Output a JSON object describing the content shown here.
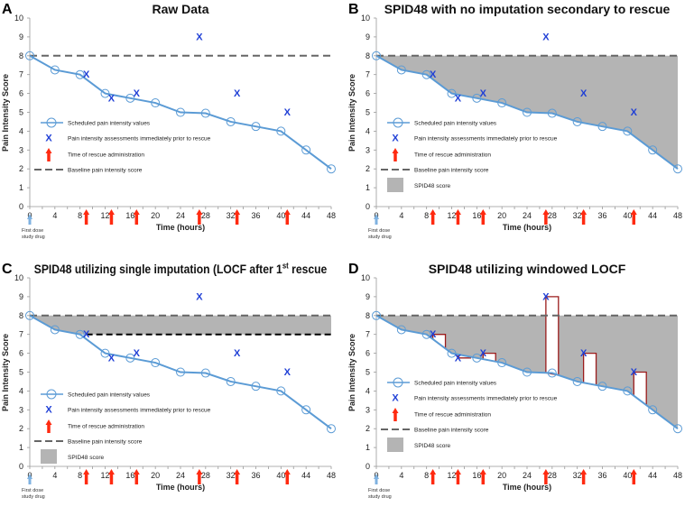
{
  "chart_data": {
    "type": "line",
    "xlabel": "Time (hours)",
    "ylabel": "Pain Intensity Score",
    "xlim": [
      0,
      48
    ],
    "ylim": [
      0,
      10
    ],
    "x_ticks": [
      "0",
      "4",
      "8",
      "12",
      "16",
      "20",
      "24",
      "28",
      "32",
      "36",
      "40",
      "44",
      "48"
    ],
    "y_ticks": [
      "0",
      "1",
      "2",
      "3",
      "4",
      "5",
      "6",
      "7",
      "8",
      "9",
      "10"
    ],
    "baseline": 8,
    "scheduled": {
      "x": [
        0,
        4,
        8,
        12,
        16,
        20,
        24,
        28,
        32,
        36,
        40,
        44,
        48
      ],
      "y": [
        8,
        7.25,
        7,
        6,
        5.75,
        5.5,
        5,
        4.95,
        4.5,
        4.25,
        4,
        3,
        2
      ]
    },
    "rescue": {
      "x": [
        9,
        13,
        17,
        27,
        33,
        41
      ],
      "y": [
        7,
        5.75,
        6,
        9,
        6,
        5
      ]
    },
    "locf_window_hours": 2,
    "first_dose_label": [
      "First dose",
      "study drug"
    ],
    "legend": {
      "scheduled": "Scheduled pain intensity values",
      "rescue_assessment": "Pain intensity assessments immediately prior to rescue",
      "rescue_time": "Time of rescue administration",
      "baseline": "Baseline pain intensity score",
      "spid": "SPID48 score"
    },
    "panels": [
      {
        "letter": "A",
        "title": "Raw Data",
        "title_sup": "",
        "title_after": "",
        "shading": "none"
      },
      {
        "letter": "B",
        "title": "SPID48 with no imputation secondary to rescue",
        "title_sup": "",
        "title_after": "",
        "shading": "full"
      },
      {
        "letter": "C",
        "title": "SPID48 utilizing single imputation (LOCF after 1",
        "title_sup": "st",
        "title_after": " rescue",
        "shading": "locf"
      },
      {
        "letter": "D",
        "title": "SPID48 utilizing windowed LOCF",
        "title_sup": "",
        "title_after": "",
        "shading": "windowed"
      }
    ],
    "colors": {
      "line": "#5b9bd5",
      "marker_x": "#1f3fd6",
      "arrow": "#ff2a10",
      "baseline": "#666666",
      "spid": "#b4b4b4",
      "window_outline": "#9b1c1c",
      "first_dose_arrow": "#7fb2e0"
    }
  }
}
